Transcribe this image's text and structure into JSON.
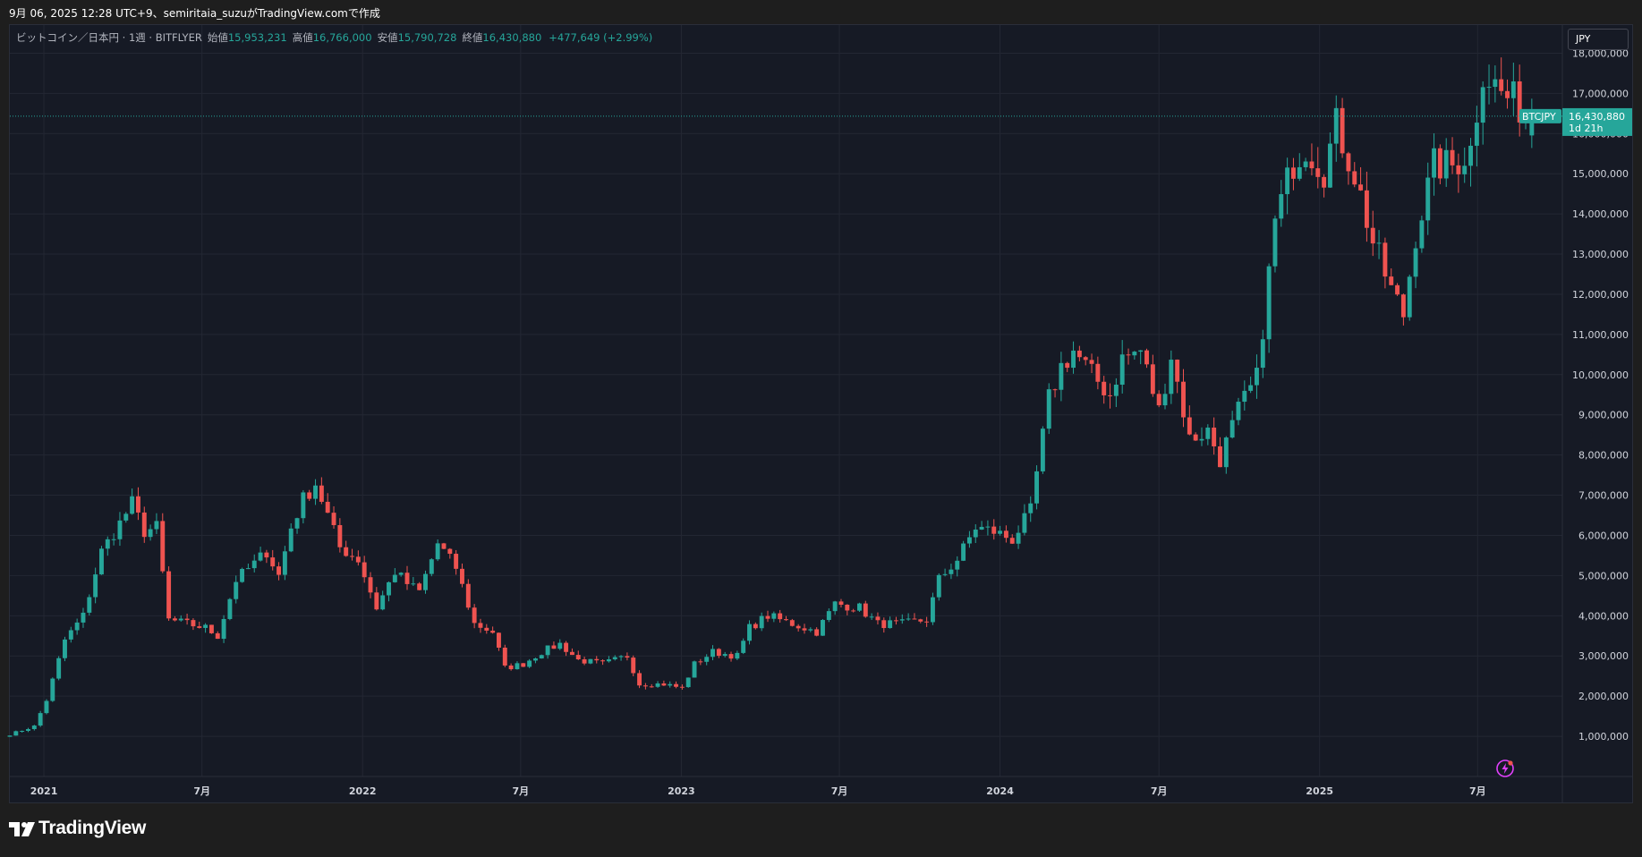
{
  "header": {
    "caption": "9月 06, 2025 12:28 UTC+9、semiritaia_suzuがTradingView.comで作成"
  },
  "legend": {
    "symbol": "ビットコイン／日本円 · 1週 · BITFLYER",
    "open_label": "始値",
    "open_value": "15,953,231",
    "high_label": "高値",
    "high_value": "16,766,000",
    "low_label": "安値",
    "low_value": "15,790,728",
    "close_label": "終値",
    "close_value": "16,430,880",
    "change": "+477,649 (+2.99%)"
  },
  "currency_button": "JPY",
  "price_tag": {
    "ticker": "BTCJPY",
    "price": "16,430,880",
    "countdown": "1d 21h"
  },
  "footer": {
    "brand": "TradingView"
  },
  "icons": {
    "logo": "tradingview-logo-icon",
    "snapshot": "lightning-icon"
  },
  "colors": {
    "background": "#161a25",
    "up": "#26a69a",
    "down": "#ef5350",
    "grid": "#232733",
    "snapshot": "#e040fb"
  },
  "chart_data": {
    "type": "candlestick",
    "interval": "1W",
    "currency": "JPY",
    "x_start": "2020-11-23",
    "x_end": "2025-10-06",
    "ylim": [
      0,
      18700000
    ],
    "y_ticks": [
      1000000,
      2000000,
      3000000,
      4000000,
      5000000,
      6000000,
      7000000,
      8000000,
      9000000,
      10000000,
      11000000,
      12000000,
      13000000,
      14000000,
      15000000,
      16000000,
      17000000,
      18000000
    ],
    "y_tick_labels": [
      "1,000,000",
      "2,000,000",
      "3,000,000",
      "4,000,000",
      "5,000,000",
      "6,000,000",
      "7,000,000",
      "8,000,000",
      "9,000,000",
      "10,000,000",
      "11,000,000",
      "12,000,000",
      "13,000,000",
      "14,000,000",
      "15,000,000",
      "16,000,000",
      "17,000,000",
      "18,000,000"
    ],
    "x_ticks": [
      {
        "date": "2021-01-01",
        "label": "2021"
      },
      {
        "date": "2021-07-01",
        "label": "7月"
      },
      {
        "date": "2022-01-01",
        "label": "2022"
      },
      {
        "date": "2022-07-01",
        "label": "7月"
      },
      {
        "date": "2023-01-01",
        "label": "2023"
      },
      {
        "date": "2023-07-01",
        "label": "7月"
      },
      {
        "date": "2024-01-01",
        "label": "2024"
      },
      {
        "date": "2024-07-01",
        "label": "7月"
      },
      {
        "date": "2025-01-01",
        "label": "2025"
      },
      {
        "date": "2025-07-01",
        "label": "7月"
      }
    ],
    "last_price": 16430880,
    "approx_weekly_close_path": [
      [
        "2020-11-23",
        1050000
      ],
      [
        "2020-12-21",
        1250000
      ],
      [
        "2021-01-04",
        1900000
      ],
      [
        "2021-01-25",
        3400000
      ],
      [
        "2021-02-15",
        4000000
      ],
      [
        "2021-03-08",
        5600000
      ],
      [
        "2021-03-29",
        6300000
      ],
      [
        "2021-04-12",
        6800000
      ],
      [
        "2021-04-26",
        6100000
      ],
      [
        "2021-05-10",
        6200000
      ],
      [
        "2021-05-24",
        3900000
      ],
      [
        "2021-06-14",
        3800000
      ],
      [
        "2021-07-05",
        3700000
      ],
      [
        "2021-07-19",
        3500000
      ],
      [
        "2021-08-09",
        4900000
      ],
      [
        "2021-08-30",
        5300000
      ],
      [
        "2021-09-13",
        5600000
      ],
      [
        "2021-09-27",
        5000000
      ],
      [
        "2021-10-11",
        6200000
      ],
      [
        "2021-10-25",
        6900000
      ],
      [
        "2021-11-08",
        7300000
      ],
      [
        "2021-11-15",
        6900000
      ],
      [
        "2021-12-06",
        5700000
      ],
      [
        "2021-12-27",
        5400000
      ],
      [
        "2022-01-17",
        4200000
      ],
      [
        "2022-02-07",
        5100000
      ],
      [
        "2022-02-21",
        4800000
      ],
      [
        "2022-03-07",
        4600000
      ],
      [
        "2022-03-28",
        5800000
      ],
      [
        "2022-04-18",
        5200000
      ],
      [
        "2022-05-09",
        3800000
      ],
      [
        "2022-05-30",
        3600000
      ],
      [
        "2022-06-13",
        2700000
      ],
      [
        "2022-07-04",
        2800000
      ],
      [
        "2022-07-25",
        3100000
      ],
      [
        "2022-08-15",
        3300000
      ],
      [
        "2022-09-05",
        2900000
      ],
      [
        "2022-10-03",
        2800000
      ],
      [
        "2022-10-31",
        3000000
      ],
      [
        "2022-11-14",
        2300000
      ],
      [
        "2022-12-12",
        2300000
      ],
      [
        "2023-01-02",
        2200000
      ],
      [
        "2023-01-16",
        2800000
      ],
      [
        "2023-02-06",
        3100000
      ],
      [
        "2023-03-06",
        3000000
      ],
      [
        "2023-03-20",
        3700000
      ],
      [
        "2023-04-10",
        4000000
      ],
      [
        "2023-05-08",
        3800000
      ],
      [
        "2023-06-05",
        3600000
      ],
      [
        "2023-06-26",
        4300000
      ],
      [
        "2023-07-24",
        4200000
      ],
      [
        "2023-08-14",
        3800000
      ],
      [
        "2023-09-11",
        3800000
      ],
      [
        "2023-10-09",
        3900000
      ],
      [
        "2023-10-23",
        4900000
      ],
      [
        "2023-11-13",
        5400000
      ],
      [
        "2023-12-04",
        6200000
      ],
      [
        "2023-12-25",
        6100000
      ],
      [
        "2024-01-15",
        5900000
      ],
      [
        "2024-02-05",
        6600000
      ],
      [
        "2024-02-26",
        9400000
      ],
      [
        "2024-03-11",
        10200000
      ],
      [
        "2024-03-25",
        10600000
      ],
      [
        "2024-04-15",
        10000000
      ],
      [
        "2024-05-06",
        9500000
      ],
      [
        "2024-05-20",
        10400000
      ],
      [
        "2024-06-10",
        10600000
      ],
      [
        "2024-07-01",
        9100000
      ],
      [
        "2024-07-15",
        10500000
      ],
      [
        "2024-08-05",
        8400000
      ],
      [
        "2024-08-26",
        8600000
      ],
      [
        "2024-09-09",
        7900000
      ],
      [
        "2024-09-30",
        9100000
      ],
      [
        "2024-10-21",
        9900000
      ],
      [
        "2024-11-11",
        13800000
      ],
      [
        "2024-12-02",
        15300000
      ],
      [
        "2024-12-16",
        15700000
      ],
      [
        "2025-01-06",
        15100000
      ],
      [
        "2025-01-20",
        16200000
      ],
      [
        "2025-02-10",
        15000000
      ],
      [
        "2025-03-03",
        13300000
      ],
      [
        "2025-03-24",
        12100000
      ],
      [
        "2025-04-07",
        11500000
      ],
      [
        "2025-04-21",
        13500000
      ],
      [
        "2025-05-12",
        15200000
      ],
      [
        "2025-06-02",
        15200000
      ],
      [
        "2025-06-23",
        15600000
      ],
      [
        "2025-07-07",
        17600000
      ],
      [
        "2025-07-28",
        17000000
      ],
      [
        "2025-08-18",
        16700000
      ],
      [
        "2025-09-01",
        16430880
      ]
    ]
  }
}
